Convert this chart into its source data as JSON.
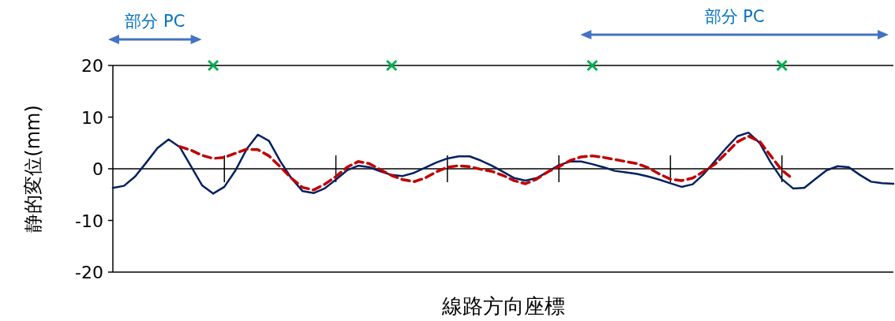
{
  "chart_data": {
    "type": "line",
    "xlabel": "線路方向座標",
    "ylabel": "静的変位(mm)",
    "categories": [
      null,
      null,
      null,
      null,
      null,
      null,
      null,
      null,
      null,
      null,
      null,
      null,
      null,
      null,
      null,
      null,
      null,
      null,
      null,
      null,
      null,
      null,
      null,
      null,
      null,
      null,
      null,
      null,
      null,
      null,
      null,
      null,
      null,
      null,
      null,
      null,
      null,
      null,
      null,
      null,
      null,
      null,
      null,
      null,
      null,
      null,
      null,
      null,
      null,
      null,
      null,
      null,
      null,
      null,
      null,
      null,
      null,
      null,
      null,
      null,
      null,
      null,
      null,
      null,
      null,
      null,
      null,
      null,
      null,
      null,
      null
    ],
    "ylim": [
      -20,
      20
    ],
    "yticks": [
      -20,
      -10,
      0,
      10,
      20
    ],
    "tick_labels": "y",
    "series": [
      {
        "color": "#002060",
        "line_style": "solid",
        "values": [
          -3.7,
          -3.3,
          -1.5,
          1.2,
          4.0,
          5.7,
          4.2,
          0.5,
          -3.2,
          -4.8,
          -3.5,
          -0.3,
          3.8,
          6.6,
          5.4,
          1.5,
          -1.8,
          -4.3,
          -4.7,
          -3.8,
          -2.1,
          -0.3,
          0.6,
          0.3,
          -0.5,
          -1.2,
          -1.4,
          -0.8,
          0.2,
          1.2,
          2.0,
          2.4,
          2.4,
          1.6,
          0.6,
          -0.6,
          -1.8,
          -2.3,
          -1.8,
          -0.6,
          0.7,
          1.4,
          1.4,
          0.9,
          0.3,
          -0.4,
          -0.7,
          -1.0,
          -1.5,
          -2.1,
          -2.8,
          -3.5,
          -3.0,
          -1.0,
          1.5,
          4.0,
          6.3,
          7.0,
          5.0,
          1.2,
          -2.0,
          -3.8,
          -3.7,
          -2.0,
          -0.3,
          0.5,
          0.3,
          -1.2,
          -2.5,
          -2.8,
          -2.9
        ]
      },
      {
        "color": "#c00000",
        "line_style": "dashed",
        "values": [
          null,
          null,
          null,
          null,
          null,
          null,
          4.3,
          3.6,
          2.6,
          2.0,
          2.2,
          3.0,
          3.8,
          3.7,
          2.5,
          0.4,
          -1.8,
          -3.6,
          -4.1,
          -3.0,
          -1.5,
          0.3,
          1.4,
          1.0,
          -0.2,
          -1.3,
          -2.1,
          -2.5,
          -1.8,
          -0.6,
          0.3,
          0.6,
          0.4,
          -0.1,
          -0.5,
          -1.3,
          -2.3,
          -2.9,
          -2.0,
          -0.6,
          0.4,
          1.6,
          2.3,
          2.5,
          2.2,
          1.8,
          1.4,
          1.0,
          0.2,
          -1.0,
          -2.0,
          -2.3,
          -1.8,
          -0.5,
          0.9,
          3.0,
          5.2,
          6.3,
          5.3,
          2.5,
          -0.3,
          -2.0,
          null,
          null,
          null,
          null,
          null,
          null,
          null,
          null,
          null
        ]
      },
      {
        "type": "scatter",
        "color": "#00b050",
        "marker": "cross",
        "values": [
          null,
          null,
          null,
          null,
          null,
          null,
          null,
          null,
          null,
          20,
          null,
          null,
          null,
          null,
          null,
          null,
          null,
          null,
          null,
          null,
          null,
          null,
          null,
          null,
          null,
          20,
          null,
          null,
          null,
          null,
          null,
          null,
          null,
          null,
          null,
          null,
          null,
          null,
          null,
          null,
          null,
          null,
          null,
          20,
          null,
          null,
          null,
          null,
          null,
          null,
          null,
          null,
          null,
          null,
          null,
          null,
          null,
          null,
          null,
          null,
          20,
          null,
          null,
          null,
          null,
          null,
          null,
          null,
          null,
          null,
          null
        ]
      }
    ],
    "annotations": [
      "部分 PC",
      "部分 PC"
    ]
  }
}
